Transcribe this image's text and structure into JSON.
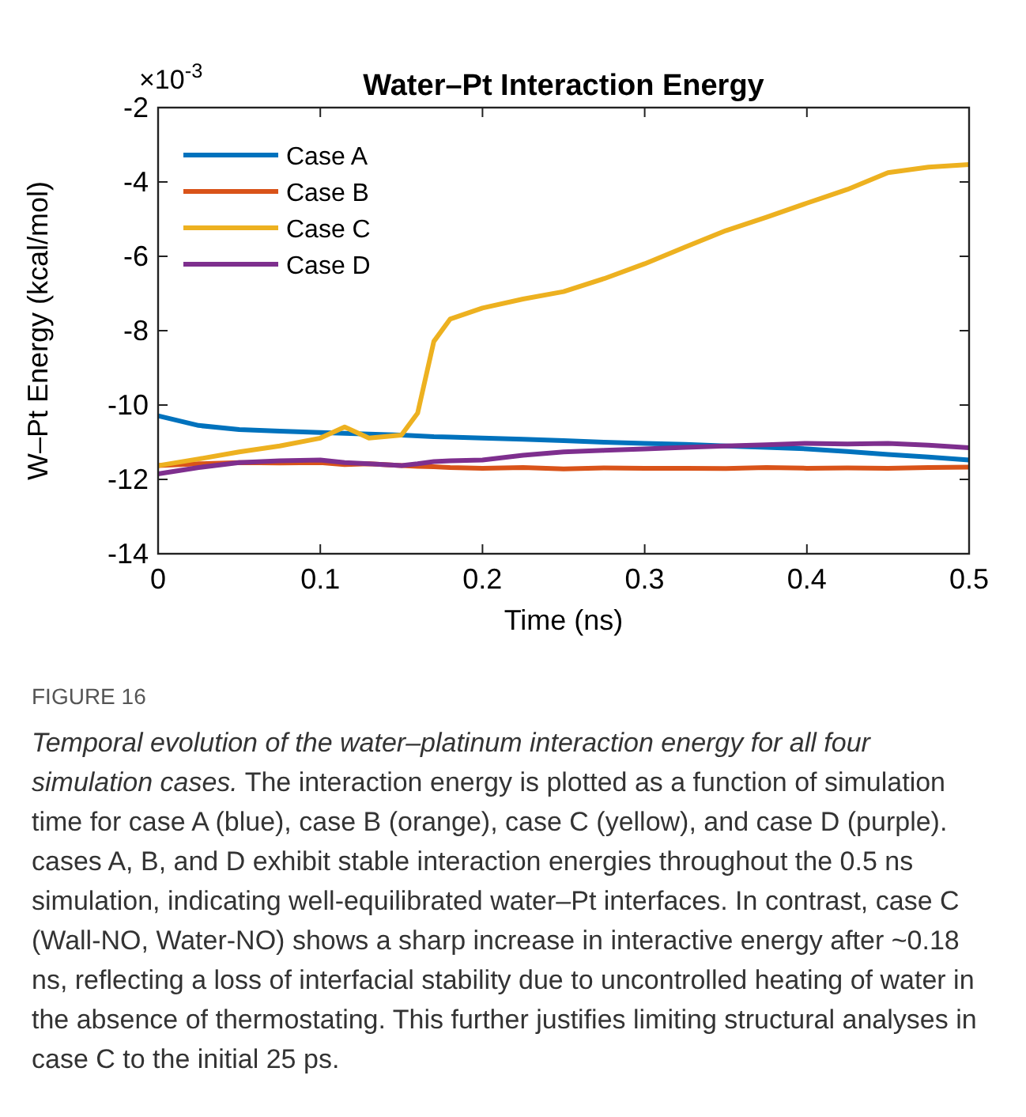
{
  "chart_data": {
    "type": "line",
    "title": "Water–Pt Interaction Energy",
    "xlabel": "Time (ns)",
    "ylabel": "W–Pt Energy (kcal/mol)",
    "xlim": [
      0,
      0.5
    ],
    "xticks": [
      0,
      0.1,
      0.2,
      0.3,
      0.4,
      0.5
    ],
    "ylim": [
      -14,
      -2
    ],
    "yticks": [
      -14,
      -12,
      -10,
      -8,
      -6,
      -4,
      -2
    ],
    "grid": false,
    "legend": "top left",
    "line_style": "solid",
    "marker": "none",
    "x": [
      0,
      0.025,
      0.05,
      0.075,
      0.1,
      0.115,
      0.13,
      0.15,
      0.16,
      0.17,
      0.18,
      0.2,
      0.225,
      0.25,
      0.275,
      0.3,
      0.325,
      0.35,
      0.375,
      0.4,
      0.425,
      0.45,
      0.475,
      0.5
    ],
    "series": [
      {
        "name": "Case A",
        "color": "#0072bd",
        "values": [
          -10.29,
          -10.55,
          -10.66,
          -10.7,
          -10.74,
          -10.76,
          -10.78,
          -10.81,
          -10.83,
          -10.85,
          -10.86,
          -10.89,
          -10.92,
          -10.96,
          -11.0,
          -11.03,
          -11.06,
          -11.1,
          -11.14,
          -11.18,
          -11.25,
          -11.33,
          -11.4,
          -11.48
        ]
      },
      {
        "name": "Case B",
        "color": "#d95319",
        "values": [
          -11.63,
          -11.58,
          -11.55,
          -11.56,
          -11.55,
          -11.6,
          -11.58,
          -11.63,
          -11.65,
          -11.66,
          -11.68,
          -11.7,
          -11.68,
          -11.72,
          -11.69,
          -11.7,
          -11.7,
          -11.71,
          -11.68,
          -11.7,
          -11.69,
          -11.7,
          -11.68,
          -11.67
        ]
      },
      {
        "name": "Case C",
        "color": "#edb120",
        "values": [
          -11.63,
          -11.45,
          -11.26,
          -11.1,
          -10.89,
          -10.59,
          -10.89,
          -10.81,
          -10.22,
          -8.29,
          -7.69,
          -7.39,
          -7.15,
          -6.95,
          -6.6,
          -6.2,
          -5.75,
          -5.31,
          -4.95,
          -4.57,
          -4.2,
          -3.75,
          -3.6,
          -3.53
        ]
      },
      {
        "name": "Case D",
        "color": "#7e2f8e",
        "values": [
          -11.85,
          -11.68,
          -11.55,
          -11.5,
          -11.48,
          -11.55,
          -11.58,
          -11.63,
          -11.58,
          -11.52,
          -11.5,
          -11.48,
          -11.35,
          -11.26,
          -11.22,
          -11.18,
          -11.14,
          -11.1,
          -11.07,
          -11.03,
          -11.05,
          -11.03,
          -11.08,
          -11.15
        ]
      }
    ],
    "annotations": [
      "×10$^{-3}$",
      "FIGURE 16",
      "Temporal evolution of the water–platinum interaction energy for all four simulation cases.",
      "The interaction energy is plotted as a function of simulation time for case A (blue), case B (orange), case C (yellow), and case D (purple). cases A, B, and D exhibit stable interaction energies throughout the 0.5 ns simulation, indicating well-equilibrated water–Pt interfaces. In contrast, case C (Wall-NO, Water-NO) shows a sharp increase in interactive energy after ~0.18 ns, reflecting a loss of interfacial stability due to uncontrolled heating of water in the absence of thermostating. This further justifies limiting structural analyses in case C to the initial 25 ps."
    ]
  }
}
